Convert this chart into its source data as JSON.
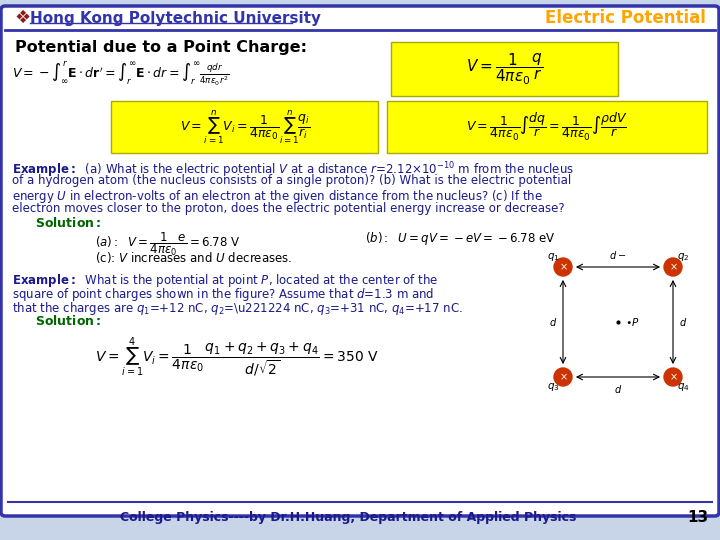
{
  "title_left": "Hong Kong Polytechnic University",
  "title_right": "Electric Potential",
  "title_left_color": "#3333AA",
  "title_right_color": "#FFA500",
  "logo_color": "#8B1A1A",
  "bg_color": "#FFFFFF",
  "slide_bg": "#C8D4E8",
  "border_color": "#3333AA",
  "section_title": "Potential due to a Point Charge:",
  "yellow_bg": "#FFFF00",
  "example_color": "#1A1A8C",
  "solution_color": "#006600",
  "footer_text": "College Physics----by Dr.H.Huang, Department of Applied Physics",
  "footer_color": "#1A1A8C",
  "page_num": "13",
  "formula_color": "#000000"
}
